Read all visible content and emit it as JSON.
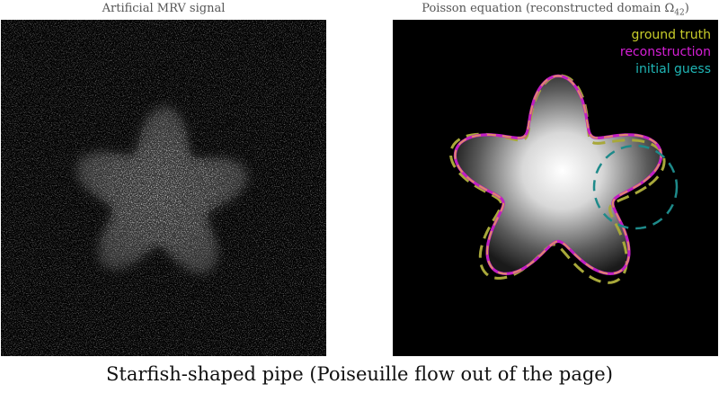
{
  "left_panel": {
    "title": "Artificial MRV signal"
  },
  "right_panel": {
    "title": "Poisson equation (reconstructed domain Ω",
    "title_subscript": "42",
    "title_suffix": ")"
  },
  "legend": {
    "items": [
      {
        "label": "ground truth",
        "color": "#c8cd2a"
      },
      {
        "label": "reconstruction",
        "color": "#d61fd6"
      },
      {
        "label": "initial guess",
        "color": "#1fb5b5"
      }
    ]
  },
  "caption": "Starfish-shaped pipe (Poiseuille flow out of the page)",
  "colors": {
    "ground_truth": "#a8a83a",
    "reconstruction": "#c21fc2",
    "reconstruction_dash": "#e08a6a",
    "initial_guess": "#1e8a8a"
  }
}
